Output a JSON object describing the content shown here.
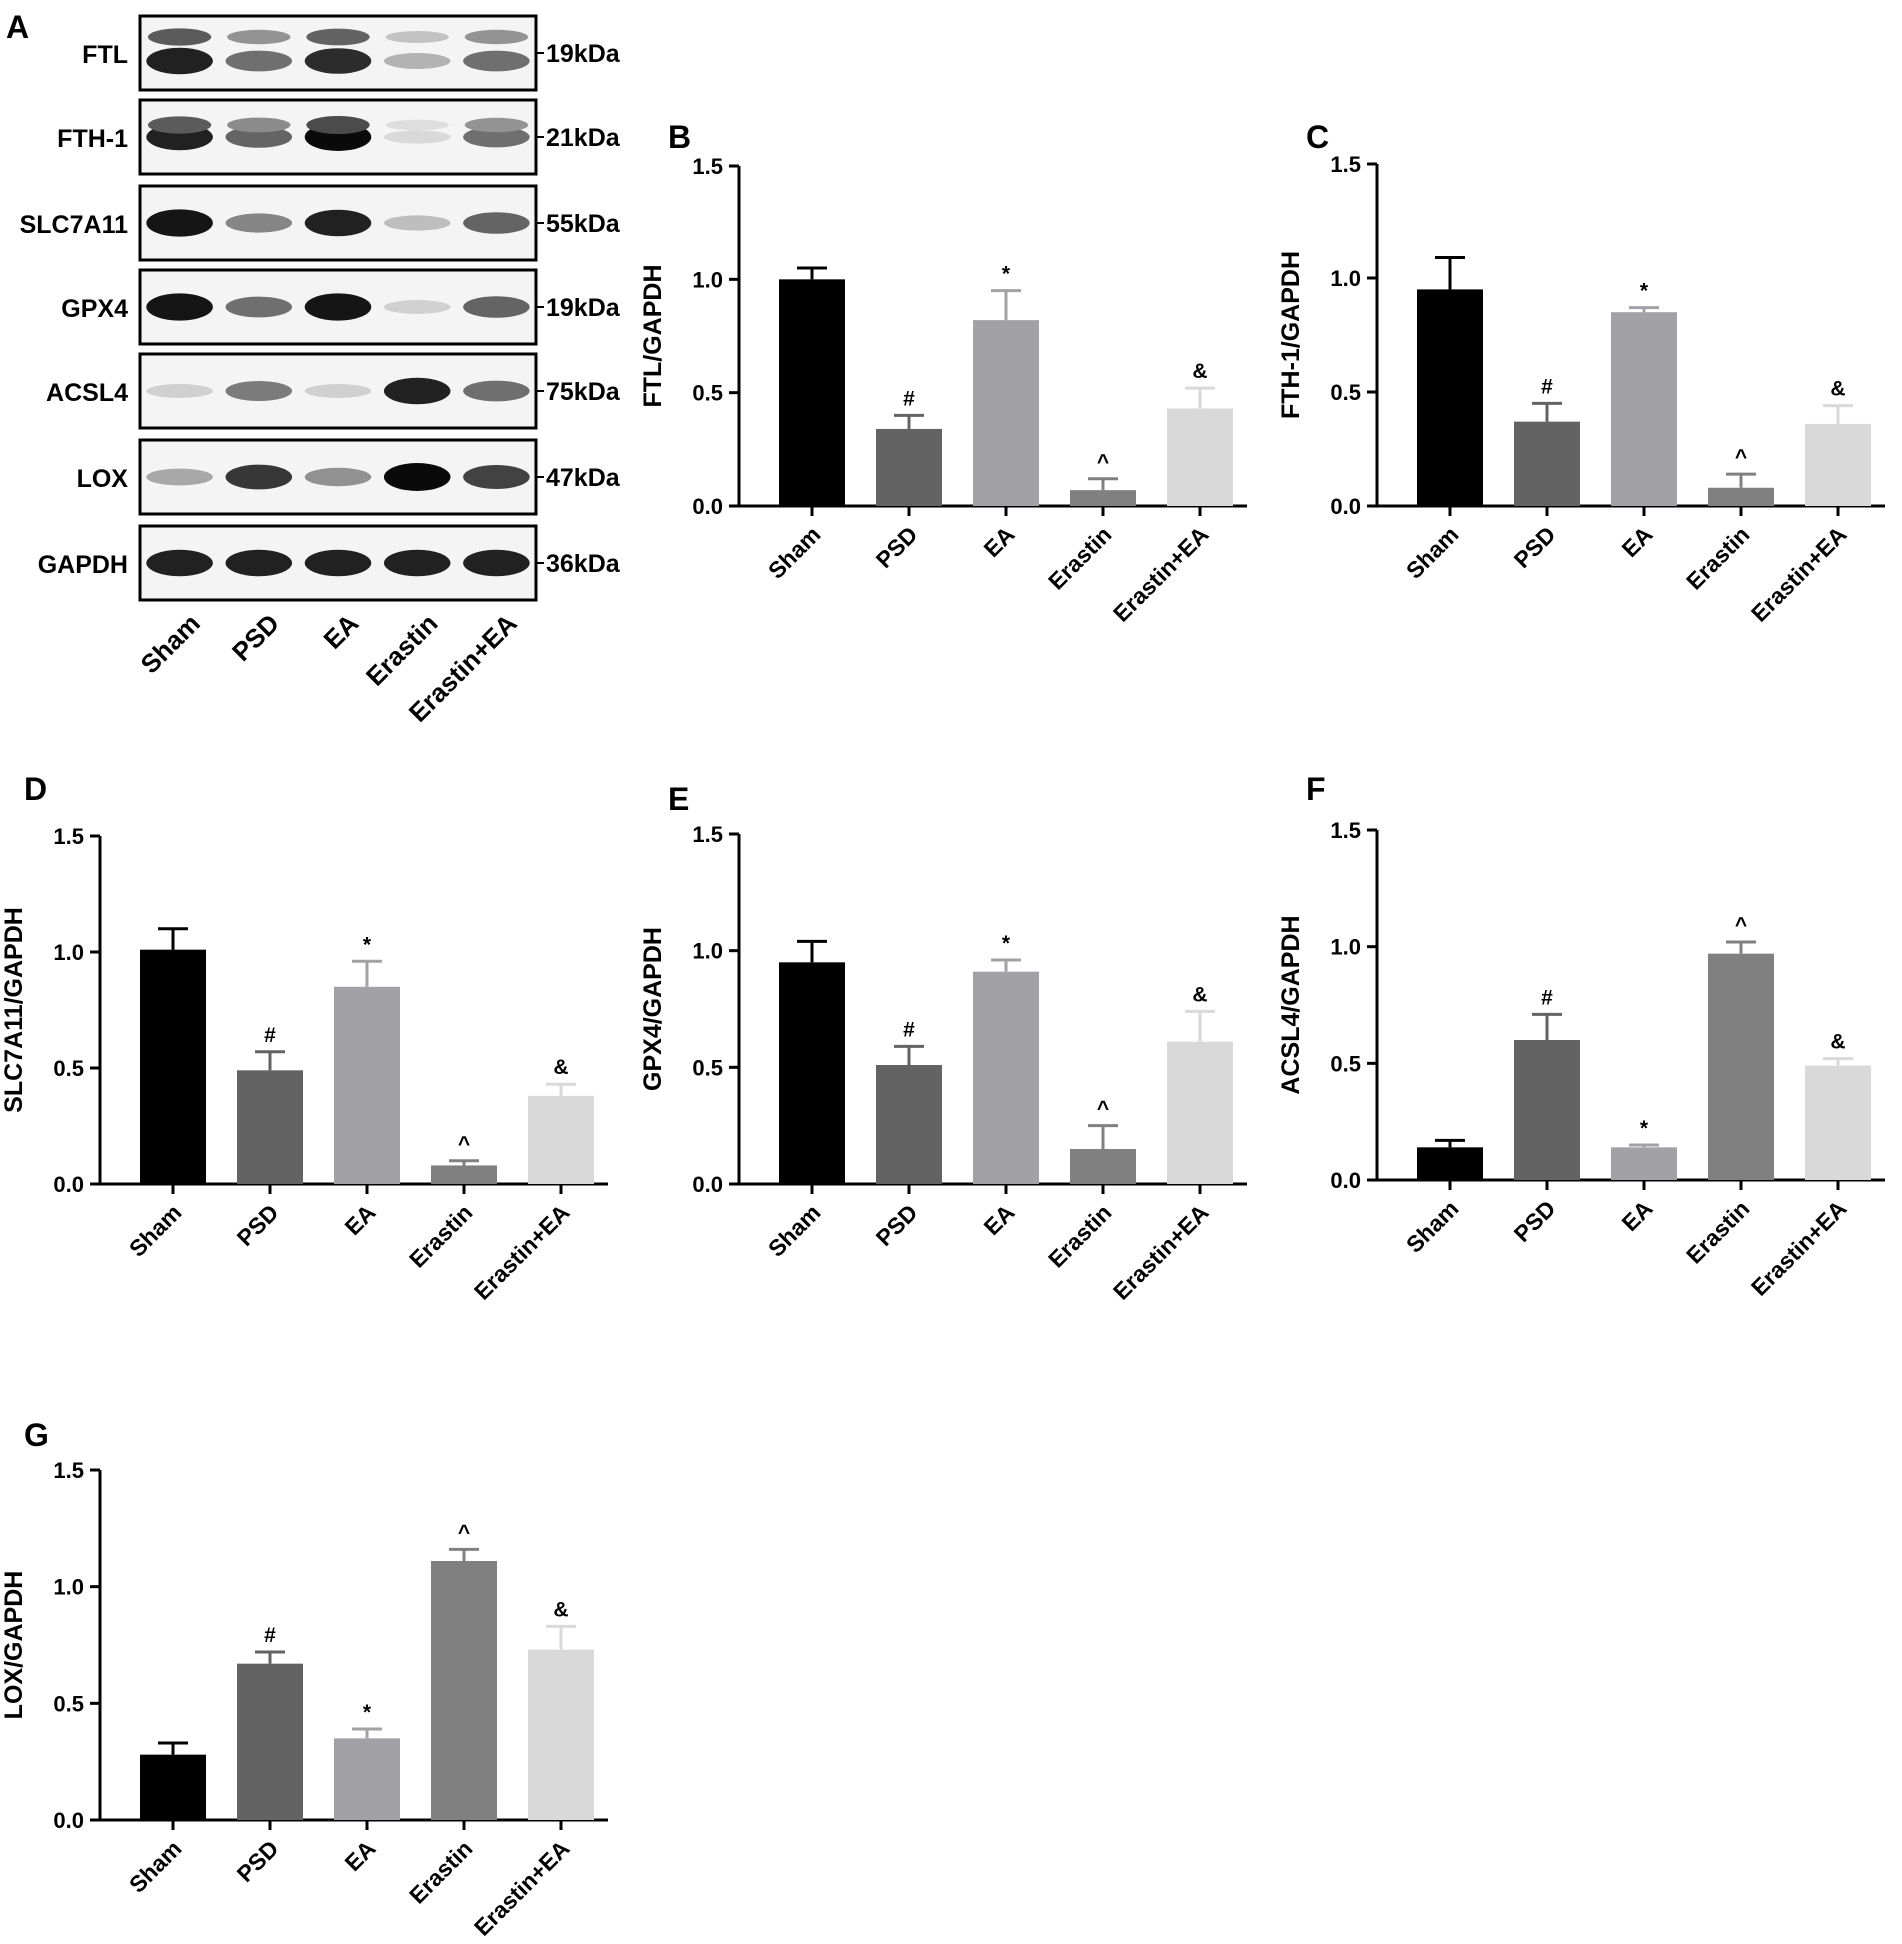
{
  "colors": {
    "bar_fills": [
      "#000000",
      "#636363",
      "#a2a2a6",
      "#808080",
      "#d9d9d9"
    ],
    "axis": "#000000"
  },
  "blot": {
    "panel_label": "A",
    "lanes": [
      "Sham",
      "PSD",
      "EA",
      "Erastin",
      "Erastin+EA"
    ],
    "rows": [
      {
        "protein": "FTL",
        "size": "19kDa",
        "intensities": [
          0.9,
          0.55,
          0.85,
          0.25,
          0.55
        ]
      },
      {
        "protein": "FTH-1",
        "size": "21kDa",
        "intensities": [
          0.9,
          0.6,
          1.0,
          0.08,
          0.55
        ]
      },
      {
        "protein": "SLC7A11",
        "size": "55kDa",
        "intensities": [
          0.95,
          0.45,
          0.9,
          0.2,
          0.6
        ]
      },
      {
        "protein": "GPX4",
        "size": "19kDa",
        "intensities": [
          0.95,
          0.55,
          0.95,
          0.12,
          0.6
        ]
      },
      {
        "protein": "ACSL4",
        "size": "75kDa",
        "intensities": [
          0.12,
          0.5,
          0.12,
          0.9,
          0.55
        ]
      },
      {
        "protein": "LOX",
        "size": "47kDa",
        "intensities": [
          0.3,
          0.8,
          0.4,
          1.0,
          0.75
        ]
      },
      {
        "protein": "GAPDH",
        "size": "36kDa",
        "intensities": [
          0.9,
          0.9,
          0.9,
          0.9,
          0.9
        ]
      }
    ]
  },
  "chart_data": [
    {
      "panel": "B",
      "type": "bar",
      "ylabel": "FTL/GAPDH",
      "categories": [
        "Sham",
        "PSD",
        "EA",
        "Erastin",
        "Erastin+EA"
      ],
      "values": [
        1.0,
        0.34,
        0.82,
        0.07,
        0.43
      ],
      "errors": [
        0.05,
        0.06,
        0.13,
        0.05,
        0.09
      ],
      "annotations": [
        "",
        "#",
        "*",
        "^",
        "&"
      ],
      "ylim": [
        0,
        1.5
      ],
      "yticks": [
        "0.0",
        "0.5",
        "1.0",
        "1.5"
      ]
    },
    {
      "panel": "C",
      "type": "bar",
      "ylabel": "FTH-1/GAPDH",
      "categories": [
        "Sham",
        "PSD",
        "EA",
        "Erastin",
        "Erastin+EA"
      ],
      "values": [
        0.95,
        0.37,
        0.85,
        0.08,
        0.36
      ],
      "errors": [
        0.14,
        0.08,
        0.02,
        0.06,
        0.08
      ],
      "annotations": [
        "",
        "#",
        "*",
        "^",
        "&"
      ],
      "ylim": [
        0,
        1.5
      ],
      "yticks": [
        "0.0",
        "0.5",
        "1.0",
        "1.5"
      ]
    },
    {
      "panel": "D",
      "type": "bar",
      "ylabel": "SLC7A11/GAPDH",
      "categories": [
        "Sham",
        "PSD",
        "EA",
        "Erastin",
        "Erastin+EA"
      ],
      "values": [
        1.01,
        0.49,
        0.85,
        0.08,
        0.38
      ],
      "errors": [
        0.09,
        0.08,
        0.11,
        0.02,
        0.05
      ],
      "annotations": [
        "",
        "#",
        "*",
        "^",
        "&"
      ],
      "ylim": [
        0,
        1.5
      ],
      "yticks": [
        "0.0",
        "0.5",
        "1.0",
        "1.5"
      ]
    },
    {
      "panel": "E",
      "type": "bar",
      "ylabel": "GPX4/GAPDH",
      "categories": [
        "Sham",
        "PSD",
        "EA",
        "Erastin",
        "Erastin+EA"
      ],
      "values": [
        0.95,
        0.51,
        0.91,
        0.15,
        0.61
      ],
      "errors": [
        0.09,
        0.08,
        0.05,
        0.1,
        0.13
      ],
      "annotations": [
        "",
        "#",
        "*",
        "^",
        "&"
      ],
      "ylim": [
        0,
        1.5
      ],
      "yticks": [
        "0.0",
        "0.5",
        "1.0",
        "1.5"
      ]
    },
    {
      "panel": "F",
      "type": "bar",
      "ylabel": "ACSL4/GAPDH",
      "categories": [
        "Sham",
        "PSD",
        "EA",
        "Erastin",
        "Erastin+EA"
      ],
      "values": [
        0.14,
        0.6,
        0.14,
        0.97,
        0.49
      ],
      "errors": [
        0.03,
        0.11,
        0.01,
        0.05,
        0.03
      ],
      "annotations": [
        "",
        "#",
        "*",
        "^",
        "&"
      ],
      "ylim": [
        0,
        1.5
      ],
      "yticks": [
        "0.0",
        "0.5",
        "1.0",
        "1.5"
      ]
    },
    {
      "panel": "G",
      "type": "bar",
      "ylabel": "LOX/GAPDH",
      "categories": [
        "Sham",
        "PSD",
        "EA",
        "Erastin",
        "Erastin+EA"
      ],
      "values": [
        0.28,
        0.67,
        0.35,
        1.11,
        0.73
      ],
      "errors": [
        0.05,
        0.05,
        0.04,
        0.05,
        0.1
      ],
      "annotations": [
        "",
        "#",
        "*",
        "^",
        "&"
      ],
      "ylim": [
        0,
        1.5
      ],
      "yticks": [
        "0.0",
        "0.5",
        "1.0",
        "1.5"
      ]
    }
  ]
}
